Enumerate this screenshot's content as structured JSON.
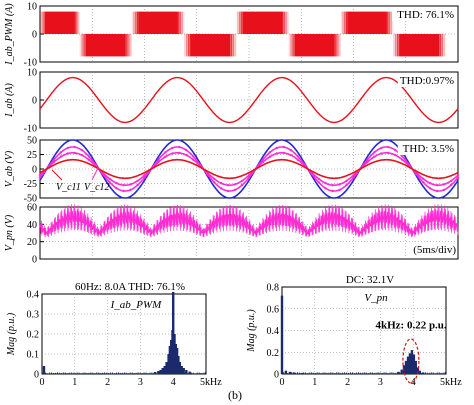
{
  "figure_label": "(b)",
  "colors": {
    "red": "#e8101a",
    "blue": "#1f2ad8",
    "magenta": "#ff2cd2",
    "navy": "#1a2a6c",
    "annot": "#d01010"
  },
  "chart_data": [
    {
      "id": "p1",
      "type": "line",
      "ylabel": "I_ab_PWM (A)",
      "annotation": "THD: 76.1%",
      "ylim": [
        -10,
        10
      ],
      "yticks": [
        "10",
        "0",
        "-10"
      ],
      "series": [
        {
          "waveform": "pwm-square",
          "amplitude_A": 8,
          "color": "red"
        }
      ]
    },
    {
      "id": "p2",
      "type": "line",
      "ylabel": "I_ab (A)",
      "annotation": "THD:0.97%",
      "ylim": [
        -10,
        10
      ],
      "yticks": [
        "10",
        "0",
        "-10"
      ],
      "series": [
        {
          "waveform": "sine",
          "amplitude_A": 8,
          "color": "red"
        }
      ]
    },
    {
      "id": "p3",
      "type": "line",
      "ylabel": "V_ab (V)",
      "annotation": "THD: 3.5%",
      "ylim": [
        -50,
        50
      ],
      "yticks": [
        "50",
        "25",
        "0",
        "-25",
        "-50"
      ],
      "labels": [
        "V_c11",
        "V_c12"
      ],
      "series": [
        {
          "waveform": "sine",
          "amplitude_V": 50,
          "color": "blue"
        },
        {
          "waveform": "sine",
          "amplitude_V": 38,
          "color": "magenta"
        },
        {
          "waveform": "sine",
          "amplitude_V": 28,
          "color": "magenta"
        },
        {
          "waveform": "sine",
          "amplitude_V": 16,
          "color": "red"
        }
      ]
    },
    {
      "id": "p4",
      "type": "line",
      "ylabel": "V_pn (V)",
      "annotation": "(5ms/div)",
      "ylim": [
        0,
        60
      ],
      "yticks": [
        "60",
        "40",
        "20",
        "0"
      ],
      "series": [
        {
          "waveform": "rectified-ripple",
          "color": "magenta"
        }
      ]
    },
    {
      "id": "s1",
      "type": "bar",
      "title": "60Hz: 8.0A THD: 76.1%",
      "inner_label": "I_ab_PWM",
      "ylabel": "Mag (p.u.)",
      "xlabel_unit": "kHz",
      "ylim": [
        0,
        0.4
      ],
      "yticks": [
        "0.4",
        "0.3",
        "0.2",
        "0.1",
        "0"
      ],
      "xlim": [
        0,
        5
      ],
      "xticks": [
        "0",
        "1",
        "2",
        "3",
        "4",
        "5kHz"
      ],
      "bars": [
        {
          "x": 0.06,
          "y": 0.04
        },
        {
          "x": 3.45,
          "y": 0.01
        },
        {
          "x": 3.55,
          "y": 0.015
        },
        {
          "x": 3.62,
          "y": 0.02
        },
        {
          "x": 3.68,
          "y": 0.03
        },
        {
          "x": 3.74,
          "y": 0.04
        },
        {
          "x": 3.8,
          "y": 0.06
        },
        {
          "x": 3.86,
          "y": 0.1
        },
        {
          "x": 3.9,
          "y": 0.14
        },
        {
          "x": 3.94,
          "y": 0.17
        },
        {
          "x": 3.98,
          "y": 0.22
        },
        {
          "x": 4.0,
          "y": 0.41
        },
        {
          "x": 4.04,
          "y": 0.2
        },
        {
          "x": 4.08,
          "y": 0.15
        },
        {
          "x": 4.12,
          "y": 0.13
        },
        {
          "x": 4.16,
          "y": 0.09
        },
        {
          "x": 4.2,
          "y": 0.06
        },
        {
          "x": 4.26,
          "y": 0.04
        },
        {
          "x": 4.32,
          "y": 0.03
        },
        {
          "x": 4.4,
          "y": 0.02
        },
        {
          "x": 4.5,
          "y": 0.012
        }
      ]
    },
    {
      "id": "s2",
      "type": "bar",
      "title": "DC: 32.1V",
      "inner_label": "V_pn",
      "ylabel": "Mag (p.u.)",
      "xlabel_unit": "kHz",
      "annotation": "4kHz: 0.22 p.u.",
      "ylim": [
        0,
        0.8
      ],
      "yticks": [
        "0.8",
        "0.6",
        "0.4",
        "0.2",
        "0"
      ],
      "xlim": [
        0,
        5
      ],
      "xticks": [
        "0",
        "1",
        "2",
        "3",
        "4",
        "5kHz"
      ],
      "bars": [
        {
          "x": 0.0,
          "y": 0.72
        },
        {
          "x": 0.12,
          "y": 0.03
        },
        {
          "x": 0.24,
          "y": 0.02
        },
        {
          "x": 0.36,
          "y": 0.015
        },
        {
          "x": 0.6,
          "y": 0.01
        },
        {
          "x": 3.55,
          "y": 0.02
        },
        {
          "x": 3.65,
          "y": 0.04
        },
        {
          "x": 3.72,
          "y": 0.08
        },
        {
          "x": 3.78,
          "y": 0.12
        },
        {
          "x": 3.84,
          "y": 0.16
        },
        {
          "x": 3.9,
          "y": 0.19
        },
        {
          "x": 3.96,
          "y": 0.22
        },
        {
          "x": 4.02,
          "y": 0.18
        },
        {
          "x": 4.08,
          "y": 0.12
        },
        {
          "x": 4.14,
          "y": 0.06
        },
        {
          "x": 4.2,
          "y": 0.03
        },
        {
          "x": 4.3,
          "y": 0.015
        }
      ]
    }
  ]
}
